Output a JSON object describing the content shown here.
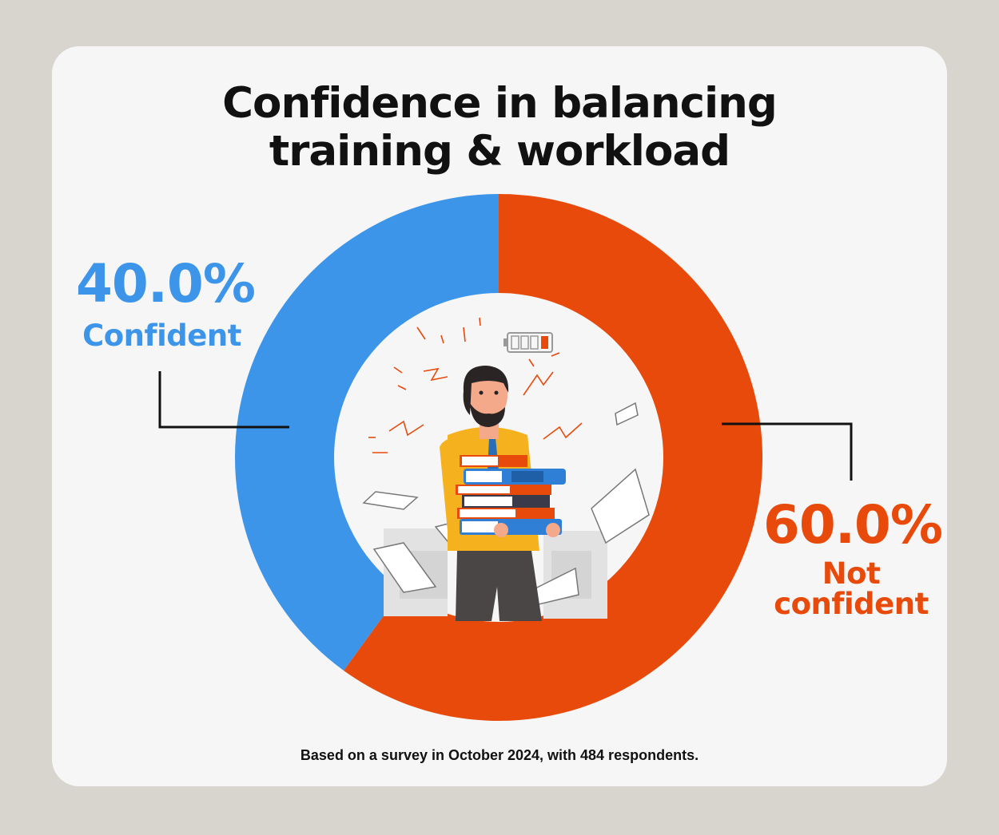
{
  "title": {
    "line1": "Confidence in balancing",
    "line2": "training & workload"
  },
  "chart_data": {
    "type": "pie",
    "variant": "donut",
    "categories": [
      "Confident",
      "Not confident"
    ],
    "values": [
      40.0,
      60.0
    ],
    "value_labels": [
      "40.0%",
      "60.0%"
    ],
    "colors": [
      "#3d95ea",
      "#e84a0b"
    ],
    "legend": "none"
  },
  "labels": {
    "left_pct": "40.0%",
    "left_text": "Confident",
    "right_pct": "60.0%",
    "right_text_1": "Not",
    "right_text_2": "confident"
  },
  "illustration": {
    "subject": "stressed man carrying a stack of books",
    "icons": [
      "battery-low-icon",
      "paper-sheet-icon",
      "book-stack-icon"
    ]
  },
  "footnote": "Based on a survey in October 2024, with 484 respondents.",
  "colors": {
    "background": "#d8d4ce",
    "card": "#f6f6f6",
    "confident": "#3d95ea",
    "not_confident": "#e84a0b"
  }
}
